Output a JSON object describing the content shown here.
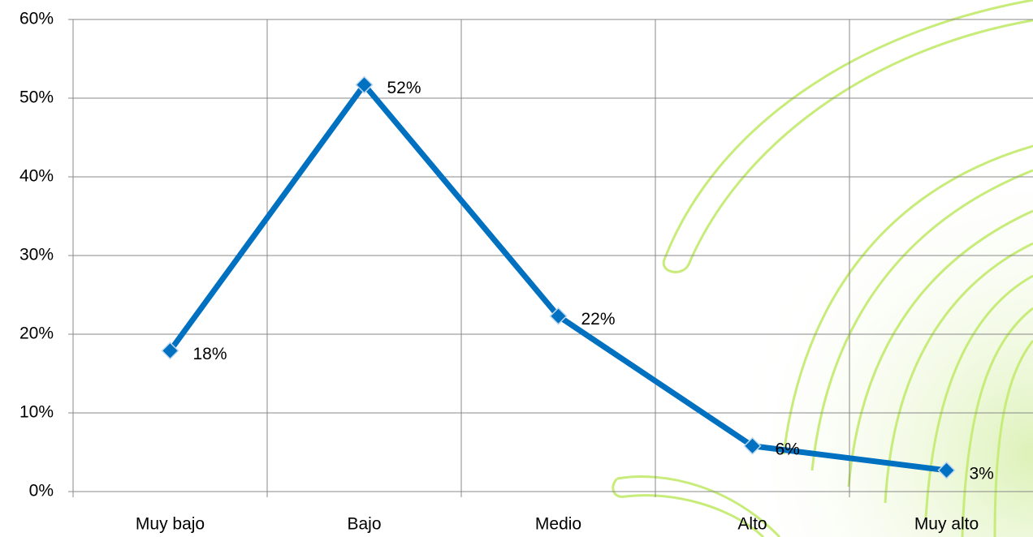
{
  "chart_data": {
    "type": "line",
    "categories": [
      "Muy bajo",
      "Bajo",
      "Medio",
      "Alto",
      "Muy alto"
    ],
    "values": [
      17.9,
      51.7,
      22.3,
      5.8,
      2.7
    ],
    "value_labels": [
      "18%",
      "52%",
      "22%",
      "6%",
      "3%"
    ],
    "color": "#0070c0",
    "ylim": [
      0,
      60
    ],
    "yticks": [
      {
        "value": 0,
        "label": "0%"
      },
      {
        "value": 10,
        "label": "10%"
      },
      {
        "value": 20,
        "label": "20%"
      },
      {
        "value": 30,
        "label": "30%"
      },
      {
        "value": 40,
        "label": "40%"
      },
      {
        "value": 50,
        "label": "50%"
      },
      {
        "value": 60,
        "label": "60%"
      }
    ],
    "grid": true
  }
}
